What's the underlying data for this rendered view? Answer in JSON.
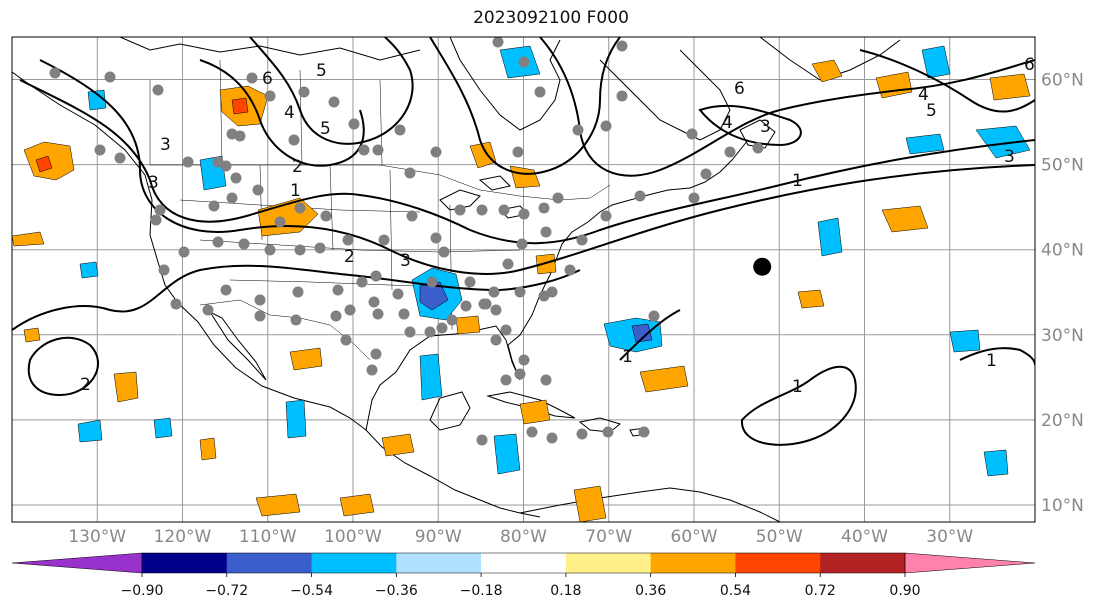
{
  "title": "2023092100 F000",
  "map": {
    "lon_range": [
      -140,
      -20
    ],
    "lat_range": [
      8,
      65
    ],
    "lon_ticks": [
      {
        "lon": -130,
        "label": "130°W"
      },
      {
        "lon": -120,
        "label": "120°W"
      },
      {
        "lon": -110,
        "label": "110°W"
      },
      {
        "lon": -100,
        "label": "100°W"
      },
      {
        "lon": -90,
        "label": "90°W"
      },
      {
        "lon": -80,
        "label": "80°W"
      },
      {
        "lon": -70,
        "label": "70°W"
      },
      {
        "lon": -60,
        "label": "60°W"
      },
      {
        "lon": -50,
        "label": "50°W"
      },
      {
        "lon": -40,
        "label": "40°W"
      },
      {
        "lon": -30,
        "label": "30°W"
      }
    ],
    "lat_ticks": [
      {
        "lat": 60,
        "label": "60°N"
      },
      {
        "lat": 50,
        "label": "50°N"
      },
      {
        "lat": 40,
        "label": "40°N"
      },
      {
        "lat": 30,
        "label": "30°N"
      },
      {
        "lat": 20,
        "label": "20°N"
      },
      {
        "lat": 10,
        "label": "10°N"
      }
    ],
    "grid": true,
    "contour_labels": [
      "6",
      "5",
      "4",
      "5",
      "3",
      "2",
      "1",
      "3",
      "2",
      "3",
      "6",
      "4",
      "3",
      "5",
      "1",
      "1",
      "1",
      "4",
      "5",
      "6",
      "2",
      "3",
      "1"
    ],
    "station_marker": {
      "lon": -52,
      "lat": 38,
      "color": "#000000"
    },
    "observation_color": "#808080"
  },
  "colorbar": {
    "colors": [
      "#9932cc",
      "#00008b",
      "#3a5fcd",
      "#00bfff",
      "#b0e2ff",
      "#ffffff",
      "#fff08a",
      "#ffa500",
      "#ff4500",
      "#b22222",
      "#ff82ab"
    ],
    "ticks": [
      "−0.90",
      "−0.72",
      "−0.54",
      "−0.36",
      "−0.18",
      "0.18",
      "0.36",
      "0.54",
      "0.72",
      "0.90"
    ],
    "extend": "both"
  }
}
